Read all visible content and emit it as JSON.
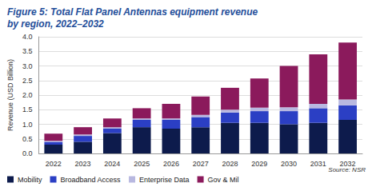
{
  "chart_data": {
    "type": "bar",
    "title": "Figure 5: Total Flat Panel Antennas equipment revenue by region, 2022–2032",
    "y_label": "Revenue (USD Billion)",
    "source": "Source: NSR",
    "categories": [
      "2022",
      "2023",
      "2024",
      "2025",
      "2026",
      "2027",
      "2028",
      "2029",
      "2030",
      "2031",
      "2032"
    ],
    "series": [
      {
        "name": "Mobility",
        "color": "#0d1b4c",
        "values": [
          0.3,
          0.4,
          0.7,
          0.9,
          0.85,
          0.9,
          1.05,
          1.05,
          1.0,
          1.05,
          1.15
        ]
      },
      {
        "name": "Broadband Access",
        "color": "#2b3fc4",
        "values": [
          0.1,
          0.2,
          0.15,
          0.25,
          0.3,
          0.35,
          0.35,
          0.4,
          0.45,
          0.5,
          0.5
        ]
      },
      {
        "name": "Enterprise Data",
        "color": "#b8b8e0",
        "values": [
          0.03,
          0.05,
          0.05,
          0.05,
          0.05,
          0.07,
          0.1,
          0.12,
          0.13,
          0.15,
          0.2
        ]
      },
      {
        "name": "Gov & Mil",
        "color": "#8b1a5c",
        "values": [
          0.25,
          0.25,
          0.3,
          0.35,
          0.5,
          0.63,
          0.75,
          1.0,
          1.42,
          1.7,
          1.95
        ]
      }
    ],
    "ylim": [
      0,
      4
    ],
    "yticks": [
      {
        "value": 0,
        "label": "0.0"
      },
      {
        "value": 0.5,
        "label": "0.5"
      },
      {
        "value": 1,
        "label": "1.0"
      },
      {
        "value": 1.5,
        "label": "1.5"
      },
      {
        "value": 2,
        "label": "2.0"
      },
      {
        "value": 2.5,
        "label": "2.5"
      },
      {
        "value": 3,
        "label": "3.0"
      },
      {
        "value": 3.5,
        "label": "3.5"
      },
      {
        "value": 4,
        "label": "4.0"
      }
    ],
    "stacked": true,
    "grid": true,
    "legend": "bottom"
  }
}
